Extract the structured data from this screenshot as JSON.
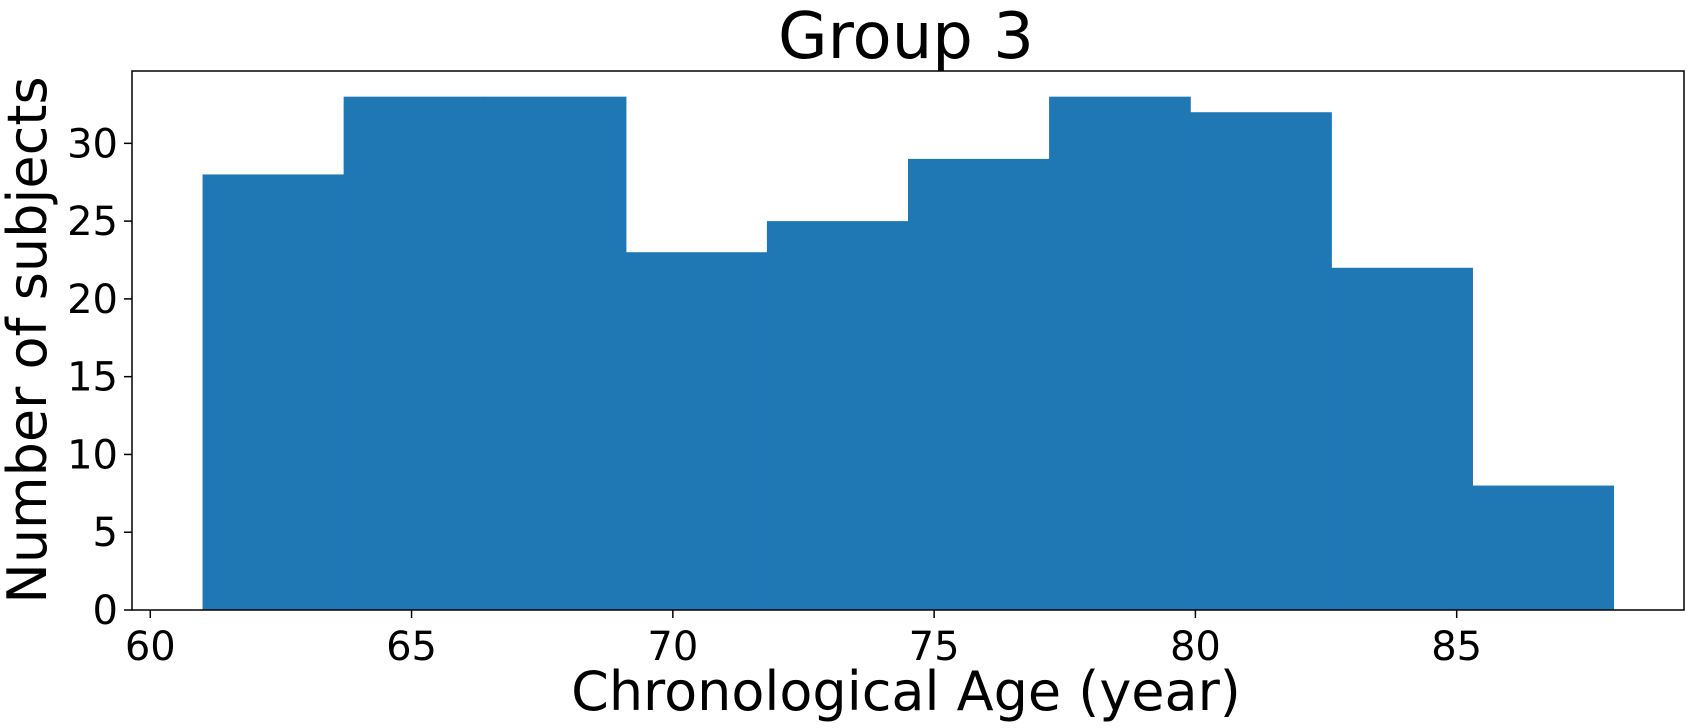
{
  "chart_data": {
    "type": "bar",
    "title": "Group 3",
    "xlabel": "Chronological Age (year)",
    "ylabel": "Number of subjects",
    "bin_edges": [
      61,
      63.7,
      66.4,
      69.1,
      71.8,
      74.5,
      77.2,
      79.9,
      82.6,
      85.3,
      88
    ],
    "values": [
      28,
      33,
      33,
      23,
      25,
      29,
      33,
      32,
      22,
      8
    ],
    "xlim": [
      59.65,
      89.35
    ],
    "ylim": [
      0,
      34.65
    ],
    "xticks": [
      60,
      65,
      70,
      75,
      80,
      85
    ],
    "yticks": [
      0,
      5,
      10,
      15,
      20,
      25,
      30
    ],
    "bar_color": "#1f77b4",
    "grid": false
  }
}
